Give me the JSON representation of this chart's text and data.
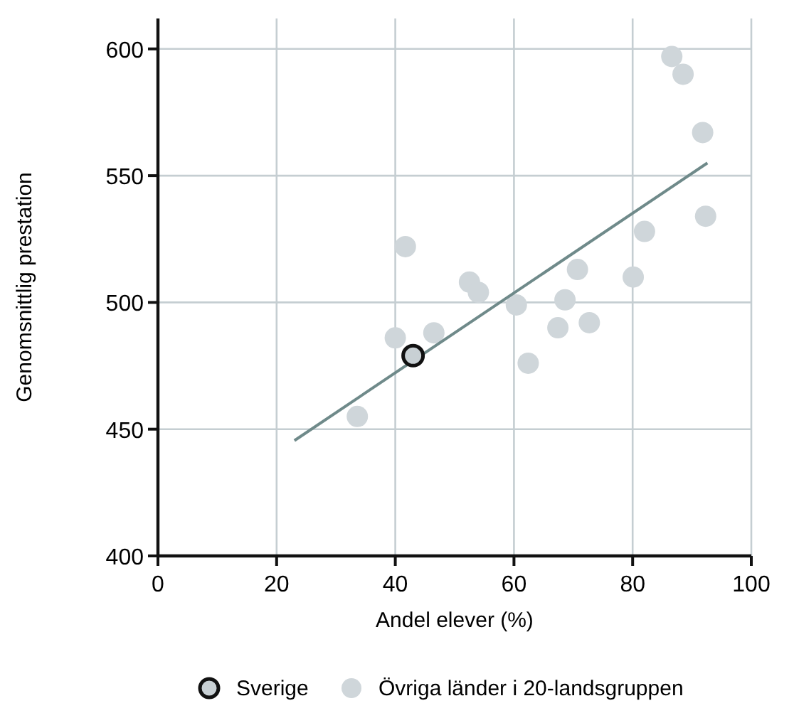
{
  "chart_data": {
    "type": "scatter",
    "xlabel": "Andel elever (%)",
    "ylabel": "Genomsnittlig prestation",
    "xlim": [
      0,
      100
    ],
    "ylim": [
      400,
      612
    ],
    "xticks": [
      0,
      20,
      40,
      60,
      80,
      100
    ],
    "yticks": [
      400,
      450,
      500,
      550,
      600
    ],
    "grid": true,
    "legend": "bottom",
    "marker": "circle",
    "series": [
      {
        "name": "Övriga länder i 20-landsgruppen",
        "color": "#cfd6da",
        "x": [
          33.6,
          40,
          41.7,
          46.5,
          52.5,
          54,
          60.4,
          62.4,
          67.4,
          68.6,
          70.7,
          72.7,
          80.1,
          82,
          86.6,
          88.5,
          91.8,
          92.3
        ],
        "values": [
          455,
          486,
          522,
          488,
          508,
          504,
          499,
          476,
          490,
          501,
          513,
          492,
          510,
          528,
          597,
          590,
          567,
          534
        ]
      },
      {
        "type": "line",
        "marker": "none",
        "color": "#6f8a8a",
        "x": [
          23,
          92.6
        ],
        "values": [
          445.5,
          555
        ]
      },
      {
        "name": "Sverige",
        "color": "#c8d0d4",
        "x": [
          43
        ],
        "values": [
          479
        ]
      }
    ]
  }
}
